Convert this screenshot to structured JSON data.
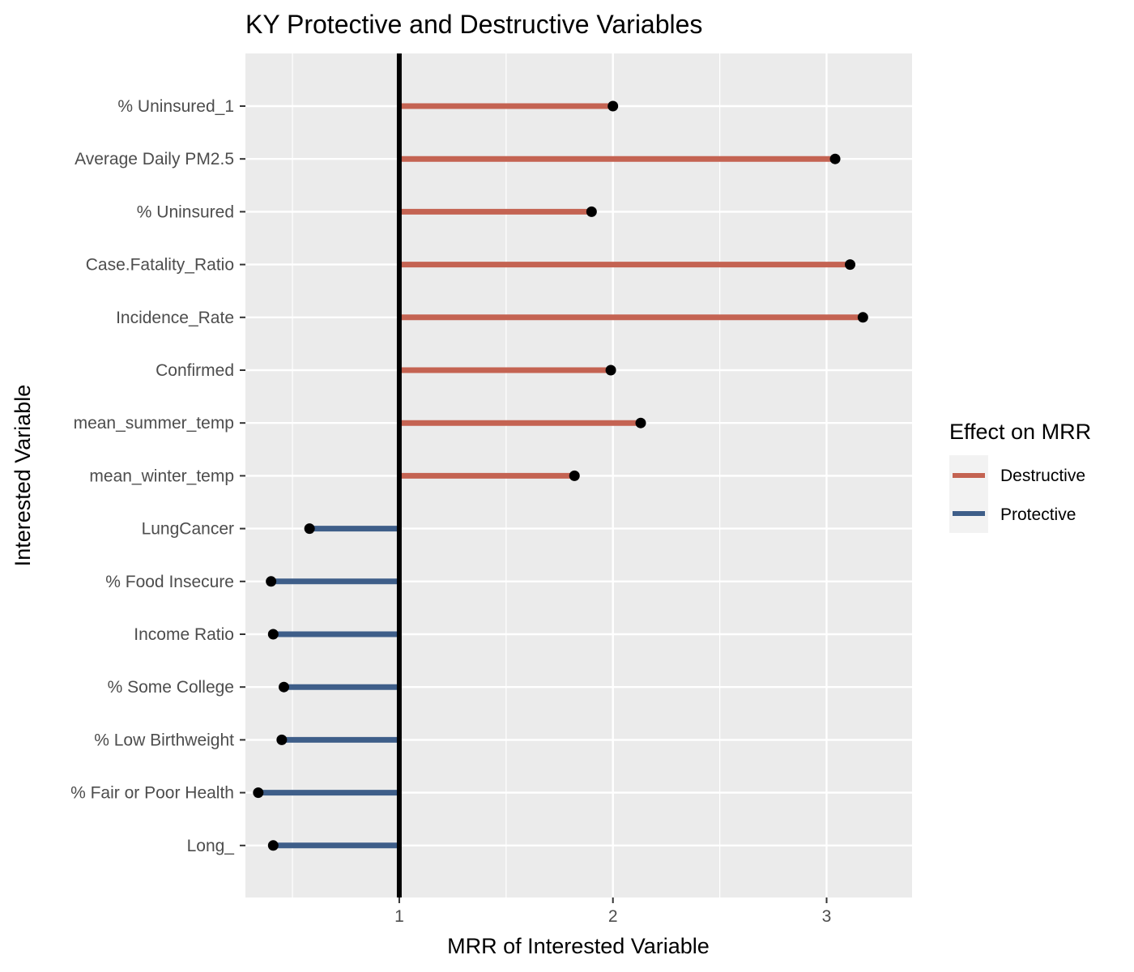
{
  "chart_data": {
    "type": "lollipop",
    "title": "KY Protective and Destructive Variables",
    "xlabel": "MRR of Interested Variable",
    "ylabel": "Interested Variable",
    "xlim": [
      0.28,
      3.4
    ],
    "x_ticks": [
      1,
      2,
      3
    ],
    "reference_line": 1,
    "grid": true,
    "legend": {
      "title": "Effect on MRR",
      "placement": "right",
      "entries": [
        {
          "label": "Destructive",
          "color": "#c46352"
        },
        {
          "label": "Protective",
          "color": "#3e5e89"
        }
      ]
    },
    "categories": [
      "% Uninsured_1",
      "Average Daily PM2.5",
      "% Uninsured",
      "Case.Fatality_Ratio",
      "Incidence_Rate",
      "Confirmed",
      "mean_summer_temp",
      "mean_winter_temp",
      "LungCancer",
      "% Food Insecure",
      "Income Ratio",
      "% Some College",
      "% Low Birthweight",
      "% Fair or Poor Health",
      "Long_"
    ],
    "values": [
      2.0,
      3.04,
      1.9,
      3.11,
      3.17,
      1.99,
      2.13,
      1.82,
      0.58,
      0.4,
      0.41,
      0.46,
      0.45,
      0.34,
      0.41
    ],
    "effect": [
      "Destructive",
      "Destructive",
      "Destructive",
      "Destructive",
      "Destructive",
      "Destructive",
      "Destructive",
      "Destructive",
      "Protective",
      "Protective",
      "Protective",
      "Protective",
      "Protective",
      "Protective",
      "Protective"
    ]
  }
}
